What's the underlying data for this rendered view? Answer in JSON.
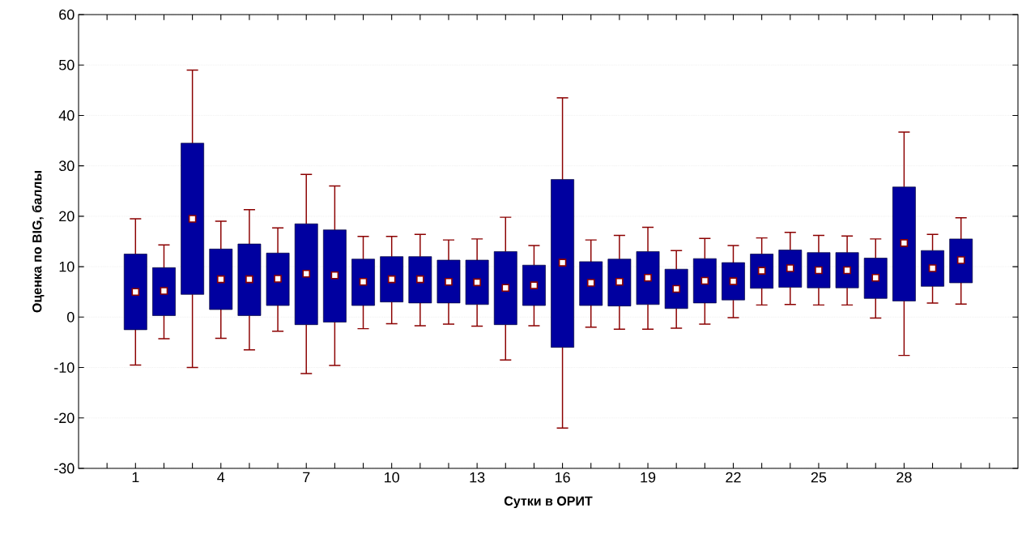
{
  "chart_data": {
    "type": "box",
    "xlabel": "Сутки в ОРИТ",
    "ylabel": "Оценка по BIG, баллы",
    "categories": [
      "1",
      null,
      null,
      "4",
      null,
      null,
      "7",
      null,
      null,
      "10",
      null,
      null,
      "13",
      null,
      null,
      "16",
      null,
      null,
      "19",
      null,
      null,
      "22",
      null,
      null,
      "25",
      null,
      null,
      "28",
      null,
      null
    ],
    "color": "#0000a0",
    "marker": "square",
    "grid": "y",
    "ylim": [
      -30,
      60
    ],
    "yticks": [
      -30,
      -20,
      -10,
      0,
      10,
      20,
      30,
      40,
      50,
      60
    ],
    "boxes": [
      {
        "low": -9.5,
        "q1": -2.5,
        "median": 5,
        "q3": 12.5,
        "high": 19.5
      },
      {
        "low": -4.3,
        "q1": 0.3,
        "median": 5.2,
        "q3": 9.8,
        "high": 14.3
      },
      {
        "low": -10,
        "q1": 4.5,
        "median": 19.5,
        "q3": 34.5,
        "high": 49
      },
      {
        "low": -4.2,
        "q1": 1.5,
        "median": 7.5,
        "q3": 13.5,
        "high": 19
      },
      {
        "low": -6.5,
        "q1": 0.3,
        "median": 7.5,
        "q3": 14.5,
        "high": 21.3
      },
      {
        "low": -2.8,
        "q1": 2.3,
        "median": 7.6,
        "q3": 12.7,
        "high": 17.7
      },
      {
        "low": -11.2,
        "q1": -1.5,
        "median": 8.6,
        "q3": 18.5,
        "high": 28.3
      },
      {
        "low": -9.6,
        "q1": -1,
        "median": 8.3,
        "q3": 17.3,
        "high": 26
      },
      {
        "low": -2.3,
        "q1": 2.3,
        "median": 7,
        "q3": 11.5,
        "high": 16
      },
      {
        "low": -1.3,
        "q1": 3,
        "median": 7.5,
        "q3": 12,
        "high": 16
      },
      {
        "low": -1.7,
        "q1": 2.8,
        "median": 7.5,
        "q3": 12,
        "high": 16.4
      },
      {
        "low": -1.4,
        "q1": 2.8,
        "median": 7,
        "q3": 11.3,
        "high": 15.3
      },
      {
        "low": -1.8,
        "q1": 2.5,
        "median": 6.9,
        "q3": 11.3,
        "high": 15.5
      },
      {
        "low": -8.5,
        "q1": -1.5,
        "median": 5.8,
        "q3": 13,
        "high": 19.8
      },
      {
        "low": -1.7,
        "q1": 2.3,
        "median": 6.3,
        "q3": 10.3,
        "high": 14.2
      },
      {
        "low": -22,
        "q1": -6,
        "median": 10.8,
        "q3": 27.3,
        "high": 43.5
      },
      {
        "low": -2,
        "q1": 2.3,
        "median": 6.8,
        "q3": 11,
        "high": 15.3
      },
      {
        "low": -2.4,
        "q1": 2.2,
        "median": 7,
        "q3": 11.5,
        "high": 16.2
      },
      {
        "low": -2.4,
        "q1": 2.5,
        "median": 7.8,
        "q3": 13,
        "high": 17.8
      },
      {
        "low": -2.2,
        "q1": 1.7,
        "median": 5.6,
        "q3": 9.5,
        "high": 13.2
      },
      {
        "low": -1.4,
        "q1": 2.8,
        "median": 7.2,
        "q3": 11.6,
        "high": 15.6
      },
      {
        "low": -0.1,
        "q1": 3.4,
        "median": 7.1,
        "q3": 10.8,
        "high": 14.2
      },
      {
        "low": 2.4,
        "q1": 5.7,
        "median": 9.2,
        "q3": 12.5,
        "high": 15.7
      },
      {
        "low": 2.5,
        "q1": 5.9,
        "median": 9.7,
        "q3": 13.3,
        "high": 16.8
      },
      {
        "low": 2.4,
        "q1": 5.8,
        "median": 9.3,
        "q3": 12.8,
        "high": 16.2
      },
      {
        "low": 2.4,
        "q1": 5.8,
        "median": 9.3,
        "q3": 12.8,
        "high": 16.1
      },
      {
        "low": -0.2,
        "q1": 3.7,
        "median": 7.8,
        "q3": 11.7,
        "high": 15.5
      },
      {
        "low": -7.6,
        "q1": 3.2,
        "median": 14.7,
        "q3": 25.8,
        "high": 36.7
      },
      {
        "low": 2.8,
        "q1": 6.1,
        "median": 9.7,
        "q3": 13.2,
        "high": 16.4
      },
      {
        "low": 2.6,
        "q1": 6.8,
        "median": 11.3,
        "q3": 15.5,
        "high": 19.7
      }
    ]
  }
}
